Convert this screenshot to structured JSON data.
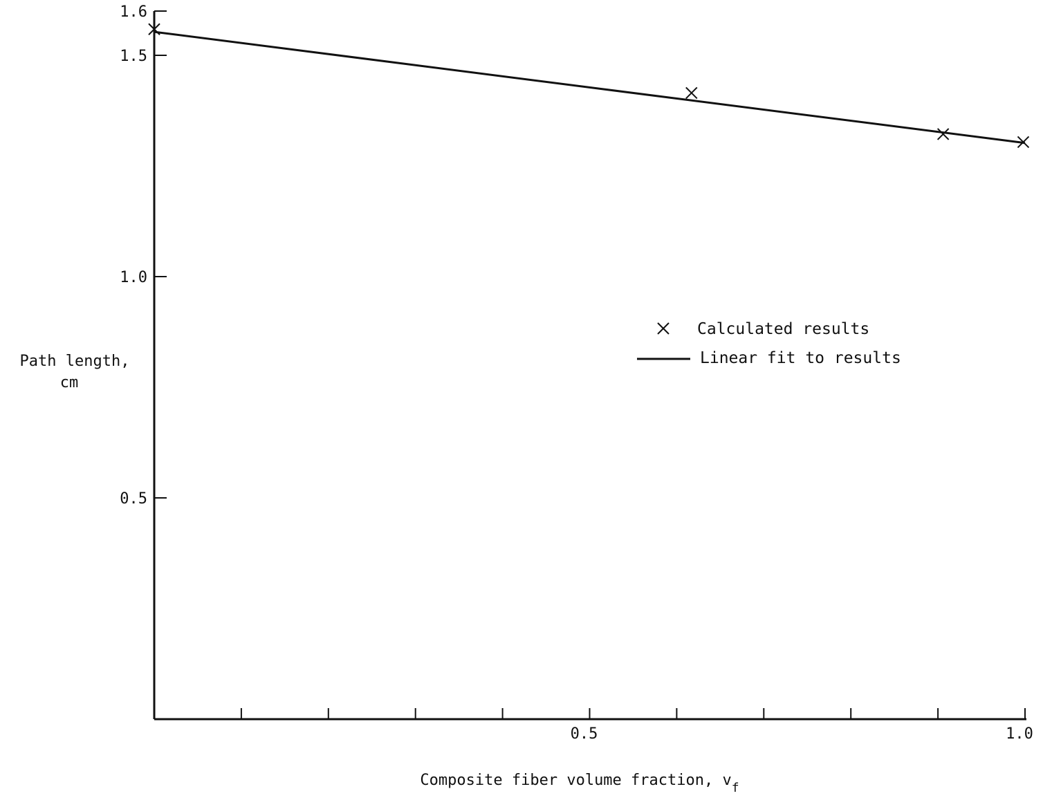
{
  "chart_data": {
    "type": "line",
    "xlabel": "Composite fiber volume fraction, v",
    "xlabel_subscript": "f",
    "ylabel_line1": "Path length,",
    "ylabel_line2": "cm",
    "xlim": [
      0,
      1.0
    ],
    "ylim": [
      0,
      1.6
    ],
    "x_ticks": [
      0,
      0.1,
      0.2,
      0.3,
      0.4,
      0.5,
      0.6,
      0.7,
      0.8,
      0.9,
      1.0
    ],
    "x_tick_labels": [
      {
        "value": 0.5,
        "label": "0.5"
      },
      {
        "value": 1.0,
        "label": "1.0"
      }
    ],
    "y_ticks": [
      {
        "value": 0.5,
        "label": "0.5"
      },
      {
        "value": 1.0,
        "label": "1.0"
      },
      {
        "value": 1.5,
        "label": "1.5"
      },
      {
        "value": 1.6,
        "label": "1.6"
      }
    ],
    "grid": false,
    "legend_position": "center-right",
    "series": [
      {
        "name": "Calculated results",
        "kind": "scatter",
        "marker": "x",
        "x": [
          0.0,
          0.617,
          0.906,
          0.998
        ],
        "y": [
          1.559,
          1.415,
          1.322,
          1.304
        ]
      },
      {
        "name": "Linear fit to results",
        "kind": "line",
        "x": [
          0.0,
          1.0
        ],
        "y": [
          1.553,
          1.302
        ]
      }
    ],
    "color": "#111111"
  }
}
